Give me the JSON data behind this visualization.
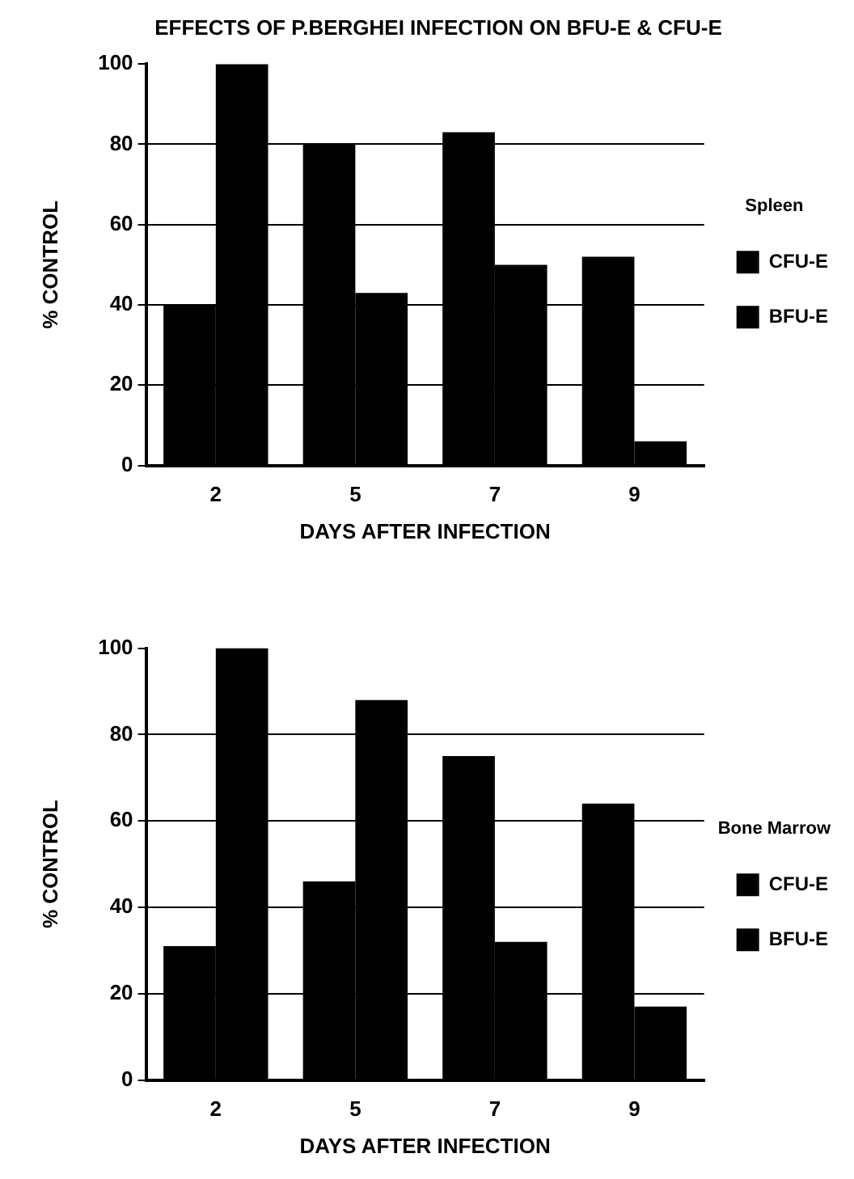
{
  "chart_data": [
    {
      "type": "bar",
      "title": "EFFECTS OF P.BERGHEI INFECTION ON BFU-E & CFU-E",
      "xlabel": "DAYS AFTER INFECTION",
      "ylabel": "% CONTROL",
      "legend_title": "Spleen",
      "categories": [
        "2",
        "5",
        "7",
        "9"
      ],
      "series": [
        {
          "name": "CFU-E",
          "color": "#000000",
          "values": [
            40,
            80,
            83,
            52
          ]
        },
        {
          "name": "BFU-E",
          "color": "#000000",
          "values": [
            100,
            43,
            50,
            6
          ]
        }
      ],
      "ylim": [
        0,
        100
      ],
      "yticks": [
        0,
        20,
        40,
        60,
        80,
        100
      ],
      "grid": "y",
      "legend": "right"
    },
    {
      "type": "bar",
      "xlabel": "DAYS AFTER INFECTION",
      "ylabel": "% CONTROL",
      "legend_title": "Bone Marrow",
      "categories": [
        "2",
        "5",
        "7",
        "9"
      ],
      "series": [
        {
          "name": "CFU-E",
          "color": "#000000",
          "values": [
            31,
            46,
            75,
            64
          ]
        },
        {
          "name": "BFU-E",
          "color": "#000000",
          "values": [
            100,
            88,
            32,
            17
          ]
        }
      ],
      "ylim": [
        0,
        100
      ],
      "yticks": [
        0,
        20,
        40,
        60,
        80,
        100
      ],
      "grid": "y",
      "legend": "right"
    }
  ]
}
